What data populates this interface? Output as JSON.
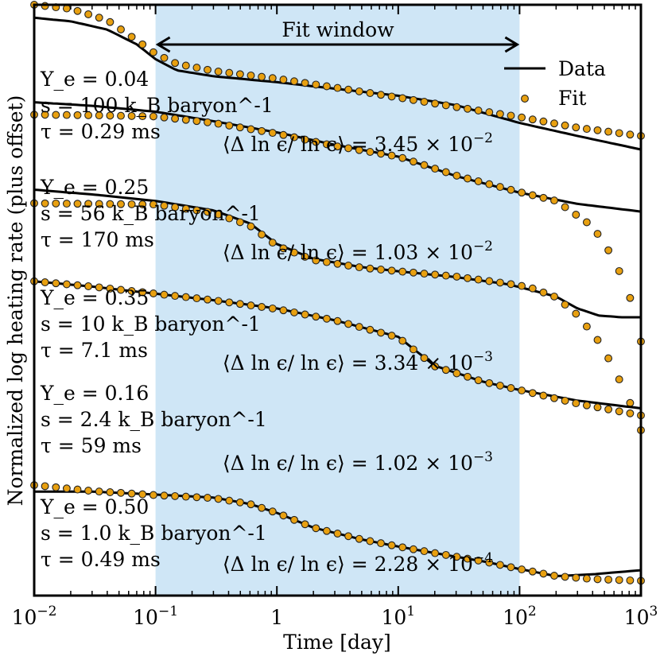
{
  "chart_data": {
    "type": "line",
    "xlabel": "Time [day]",
    "ylabel": "Normalized log heating rate (plus offset)",
    "xscale": "log",
    "xlim": [
      0.01,
      1000
    ],
    "ylim": [
      0,
      100
    ],
    "grid": false,
    "xticks": [
      {
        "value": 0.01,
        "base": "10",
        "exp": "−2"
      },
      {
        "value": 0.1,
        "base": "10",
        "exp": "−1"
      },
      {
        "value": 1,
        "base": "1",
        "exp": ""
      },
      {
        "value": 10,
        "base": "10",
        "exp": "1"
      },
      {
        "value": 100,
        "base": "10",
        "exp": "2"
      },
      {
        "value": 1000,
        "base": "10",
        "exp": "3"
      }
    ],
    "fit_window": {
      "x0": 0.1,
      "x1": 100,
      "label": "Fit window",
      "color": "#cfe6f6"
    },
    "legend": {
      "position": "top-right",
      "entries": [
        {
          "label": "Data",
          "kind": "line"
        },
        {
          "label": "Fit",
          "kind": "marker"
        }
      ]
    },
    "colors": {
      "data": "#000000",
      "fit_fill": "#e8a010",
      "fit_edge": "#222222"
    },
    "series": [
      {
        "name": "Ye=0.04",
        "label_lines": [
          "Y_e = 0.04",
          "s = 100 k_B baryon^-1",
          "τ = 0.29 ms"
        ],
        "metric": {
          "prefix": "⟨Δ ln ϵ/ ln ϵ⟩ = 3.45 × 10",
          "exp": "−2"
        },
        "data": [
          [
            0.01,
            97.8
          ],
          [
            0.02,
            97.2
          ],
          [
            0.04,
            95.8
          ],
          [
            0.07,
            93.3
          ],
          [
            0.1,
            90.8
          ],
          [
            0.15,
            88.9
          ],
          [
            0.3,
            87.9
          ],
          [
            1,
            86.9
          ],
          [
            3,
            85.8
          ],
          [
            10,
            84.6
          ],
          [
            30,
            83
          ],
          [
            100,
            80
          ],
          [
            300,
            77.8
          ],
          [
            1000,
            75.5
          ]
        ],
        "fit": [
          [
            0.01,
            100
          ],
          [
            0.02,
            99.3
          ],
          [
            0.04,
            97.4
          ],
          [
            0.07,
            94
          ],
          [
            0.1,
            91.7
          ],
          [
            0.15,
            90
          ],
          [
            0.3,
            88.8
          ],
          [
            1,
            87.5
          ],
          [
            3,
            86
          ],
          [
            10,
            84.3
          ],
          [
            30,
            82.7
          ],
          [
            100,
            81
          ],
          [
            300,
            79.2
          ],
          [
            1000,
            77.8
          ]
        ]
      },
      {
        "name": "Ye=0.25",
        "label_lines": [
          "Y_e = 0.25",
          "s = 56 k_B baryon^-1",
          "τ = 170 ms"
        ],
        "metric": {
          "prefix": "⟨Δ ln ϵ/ ln ϵ⟩ = 1.03 × 10",
          "exp": "−2"
        },
        "data": [
          [
            0.01,
            83.5
          ],
          [
            0.03,
            82.9
          ],
          [
            0.1,
            81.9
          ],
          [
            0.3,
            80.3
          ],
          [
            1,
            78.4
          ],
          [
            3,
            76.3
          ],
          [
            10,
            74.3
          ],
          [
            30,
            71
          ],
          [
            100,
            68.2
          ],
          [
            300,
            66.3
          ],
          [
            1000,
            65
          ]
        ],
        "fit": [
          [
            0.01,
            81.4
          ],
          [
            0.03,
            81.3
          ],
          [
            0.1,
            81.1
          ],
          [
            0.3,
            80
          ],
          [
            1,
            78.2
          ],
          [
            3,
            76.1
          ],
          [
            10,
            74.3
          ],
          [
            30,
            71.1
          ],
          [
            100,
            68.3
          ],
          [
            200,
            66.8
          ],
          [
            400,
            62.5
          ],
          [
            600,
            57
          ],
          [
            800,
            51
          ],
          [
            1000,
            43
          ]
        ]
      },
      {
        "name": "Ye=0.35",
        "label_lines": [
          "Y_e = 0.35",
          "s = 10 k_B baryon^-1",
          "τ = 7.1 ms"
        ],
        "metric": {
          "prefix": "⟨Δ ln ϵ/ ln ϵ⟩ = 3.34 × 10",
          "exp": "−3"
        },
        "data": [
          [
            0.01,
            68.7
          ],
          [
            0.03,
            67.9
          ],
          [
            0.1,
            66.8
          ],
          [
            0.3,
            65.2
          ],
          [
            0.6,
            63
          ],
          [
            1,
            59.5
          ],
          [
            2,
            57
          ],
          [
            5,
            55.6
          ],
          [
            10,
            54.9
          ],
          [
            30,
            53.9
          ],
          [
            80,
            52.7
          ],
          [
            120,
            51.8
          ],
          [
            200,
            50.6
          ],
          [
            300,
            48.6
          ],
          [
            450,
            47.4
          ],
          [
            700,
            47.1
          ],
          [
            1000,
            47.1
          ]
        ],
        "fit": [
          [
            0.01,
            66.4
          ],
          [
            0.03,
            66.3
          ],
          [
            0.1,
            66.2
          ],
          [
            0.3,
            64.8
          ],
          [
            0.6,
            62.6
          ],
          [
            1,
            59.2
          ],
          [
            2,
            56.8
          ],
          [
            5,
            55.5
          ],
          [
            10,
            54.9
          ],
          [
            30,
            54
          ],
          [
            80,
            52.8
          ],
          [
            120,
            52.2
          ],
          [
            200,
            50.5
          ],
          [
            300,
            47.5
          ],
          [
            450,
            43
          ],
          [
            600,
            38.5
          ],
          [
            800,
            33
          ],
          [
            1000,
            28
          ]
        ]
      },
      {
        "name": "Ye=0.16",
        "label_lines": [
          "Y_e = 0.16",
          "s = 2.4 k_B baryon^-1",
          "τ = 59 ms"
        ],
        "metric": {
          "prefix": "⟨Δ ln ϵ/ ln ϵ⟩ = 1.02 × 10",
          "exp": "−3"
        },
        "data": [
          [
            0.01,
            53.2
          ],
          [
            0.03,
            52.3
          ],
          [
            0.1,
            51.1
          ],
          [
            0.3,
            50
          ],
          [
            1,
            48.6
          ],
          [
            3,
            46.6
          ],
          [
            10,
            43.8
          ],
          [
            20,
            38.9
          ],
          [
            50,
            36.2
          ],
          [
            100,
            34.8
          ],
          [
            300,
            33
          ],
          [
            1000,
            31.7
          ]
        ],
        "fit": [
          [
            0.01,
            53.2
          ],
          [
            0.03,
            52.3
          ],
          [
            0.1,
            51.1
          ],
          [
            0.3,
            50
          ],
          [
            1,
            48.5
          ],
          [
            3,
            46.6
          ],
          [
            10,
            43.7
          ],
          [
            20,
            38.8
          ],
          [
            50,
            36.2
          ],
          [
            100,
            34.8
          ],
          [
            300,
            32.5
          ],
          [
            1000,
            30.5
          ]
        ]
      },
      {
        "name": "Ye=0.50",
        "label_lines": [
          "Y_e = 0.50",
          "s = 1.0 k_B baryon^-1",
          "τ = 0.49 ms"
        ],
        "metric": {
          "prefix": "⟨Δ ln ϵ/ ln ϵ⟩ = 2.28 × 10",
          "exp": "−4"
        },
        "data": [
          [
            0.01,
            17.6
          ],
          [
            0.03,
            17.6
          ],
          [
            0.1,
            17.1
          ],
          [
            0.3,
            16.6
          ],
          [
            0.6,
            15.5
          ],
          [
            1,
            14
          ],
          [
            2,
            11.5
          ],
          [
            5,
            9.5
          ],
          [
            10,
            8.3
          ],
          [
            20,
            7.2
          ],
          [
            50,
            5.8
          ],
          [
            100,
            4.5
          ],
          [
            200,
            3.3
          ],
          [
            400,
            3.6
          ],
          [
            1000,
            4.3
          ]
        ],
        "fit": [
          [
            0.01,
            18.7
          ],
          [
            0.03,
            17.7
          ],
          [
            0.1,
            17
          ],
          [
            0.3,
            16.5
          ],
          [
            0.6,
            15.5
          ],
          [
            1,
            14
          ],
          [
            2,
            11.5
          ],
          [
            5,
            9.5
          ],
          [
            10,
            8.3
          ],
          [
            20,
            7.2
          ],
          [
            50,
            5.8
          ],
          [
            100,
            4.5
          ],
          [
            200,
            3.3
          ],
          [
            400,
            2.8
          ],
          [
            1000,
            2.5
          ]
        ]
      }
    ]
  }
}
